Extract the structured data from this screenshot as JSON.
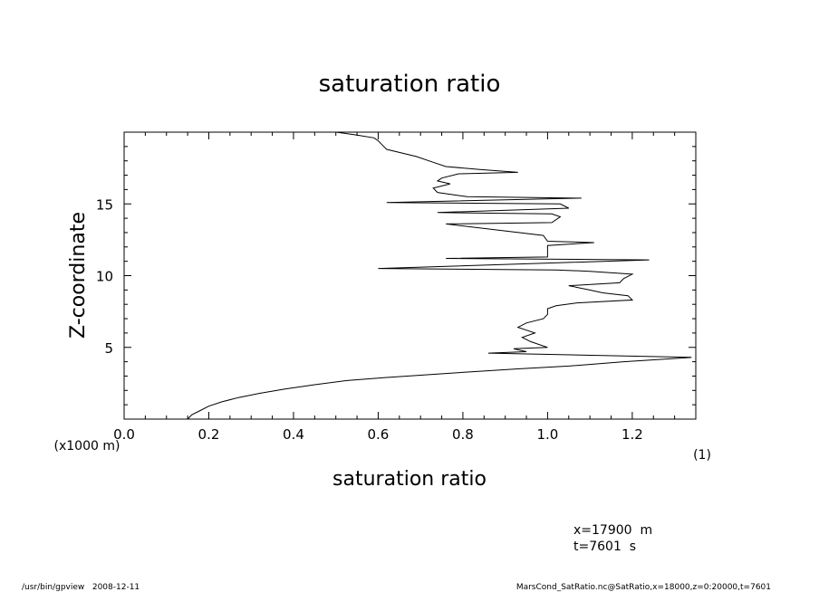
{
  "chart_data": {
    "type": "line",
    "title": "saturation ratio",
    "xlabel": "saturation ratio",
    "xlabel_units": "(1)",
    "ylabel": "Z-coordinate",
    "ylabel_units": "(x1000 m)",
    "xlim": [
      0.0,
      1.35
    ],
    "ylim": [
      0.0,
      20.0
    ],
    "x_ticks": [
      0.0,
      0.2,
      0.4,
      0.6,
      0.8,
      1.0,
      1.2
    ],
    "x_tick_labels": [
      "0.0",
      "0.2",
      "0.4",
      "0.6",
      "0.8",
      "1.0",
      "1.2"
    ],
    "y_ticks": [
      5,
      10,
      15
    ],
    "y_tick_labels": [
      "5",
      "10",
      "15"
    ],
    "grid": false,
    "series": [
      {
        "x": [
          0.15,
          0.16,
          0.18,
          0.2,
          0.23,
          0.27,
          0.32,
          0.38,
          0.45,
          0.53,
          0.62,
          0.72,
          0.82,
          0.93,
          1.05,
          1.18,
          1.34,
          0.86,
          0.95,
          0.92,
          1.0,
          0.96,
          0.94,
          0.97,
          0.95,
          0.93,
          0.95,
          0.99,
          1.0,
          1.0,
          1.02,
          1.07,
          1.2,
          1.19,
          1.13,
          1.1,
          1.05,
          1.17,
          1.18,
          1.2,
          1.1,
          1.02,
          0.6,
          1.24,
          0.76,
          1.0,
          1.0,
          1.11,
          1.0,
          0.99,
          0.76,
          1.01,
          1.03,
          1.01,
          0.74,
          1.05,
          1.03,
          0.62,
          1.08,
          0.81,
          0.74,
          0.73,
          0.77,
          0.74,
          0.75,
          0.79,
          0.93,
          0.84,
          0.76,
          0.73,
          0.69,
          0.62,
          0.61,
          0.6,
          0.59,
          0.55,
          0.5
        ],
        "y": [
          0.0,
          0.3,
          0.6,
          0.9,
          1.2,
          1.5,
          1.8,
          2.1,
          2.4,
          2.7,
          2.9,
          3.1,
          3.3,
          3.5,
          3.7,
          4.0,
          4.3,
          4.6,
          4.7,
          4.9,
          5.0,
          5.4,
          5.7,
          6.0,
          6.2,
          6.4,
          6.7,
          7.0,
          7.3,
          7.7,
          7.9,
          8.1,
          8.3,
          8.6,
          8.8,
          9.0,
          9.3,
          9.5,
          9.8,
          10.1,
          10.3,
          10.4,
          10.5,
          11.1,
          11.2,
          11.3,
          12.1,
          12.3,
          12.4,
          12.8,
          13.6,
          13.7,
          14.1,
          14.3,
          14.4,
          14.7,
          15.0,
          15.1,
          15.4,
          15.5,
          15.8,
          16.1,
          16.4,
          16.6,
          16.8,
          17.1,
          17.2,
          17.4,
          17.6,
          17.9,
          18.3,
          18.8,
          19.1,
          19.4,
          19.6,
          19.8,
          20.0
        ]
      }
    ]
  },
  "footer": {
    "meta_line_1": "x=17900  m",
    "meta_line_2": "t=7601  s",
    "program": "/usr/bin/gpview   2008-12-11",
    "source": "MarsCond_SatRatio.nc@SatRatio,x=18000,z=0:20000,t=7601"
  }
}
